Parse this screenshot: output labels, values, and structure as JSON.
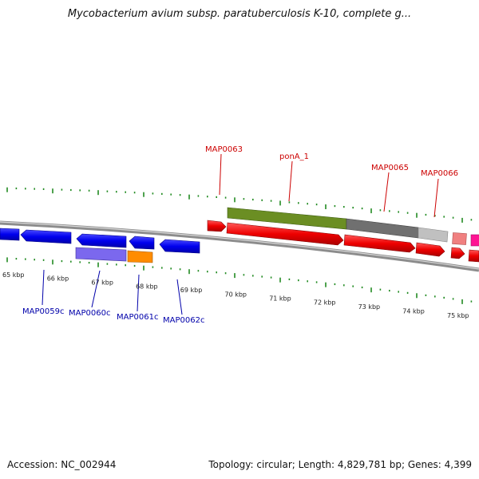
{
  "title": "Mycobacterium avium subsp. paratuberculosis K-10, complete g...",
  "footer": {
    "accession": "Accession: NC_002944",
    "stats": "Topology: circular; Length: 4,829,781 bp; Genes: 4,399"
  },
  "colors": {
    "forward_cds": "#ff0000",
    "reverse_cds": "#0000ff",
    "forward_label": "#cc0000",
    "reverse_label": "#0000aa",
    "tick": "#228b22",
    "backbone": "#808080"
  },
  "kbp_ticks": [
    {
      "label": "65 kbp"
    },
    {
      "label": "66 kbp"
    },
    {
      "label": "67 kbp"
    },
    {
      "label": "68 kbp"
    },
    {
      "label": "69 kbp"
    },
    {
      "label": "70 kbp"
    },
    {
      "label": "71 kbp"
    },
    {
      "label": "72 kbp"
    },
    {
      "label": "73 kbp"
    },
    {
      "label": "74 kbp"
    },
    {
      "label": "75 kbp"
    }
  ],
  "forward_labels": [
    "MAP0063",
    "ponA_1",
    "MAP0065",
    "MAP0066"
  ],
  "reverse_labels": [
    "MAP0059c",
    "MAP0060c",
    "MAP0061c",
    "MAP0062c"
  ]
}
